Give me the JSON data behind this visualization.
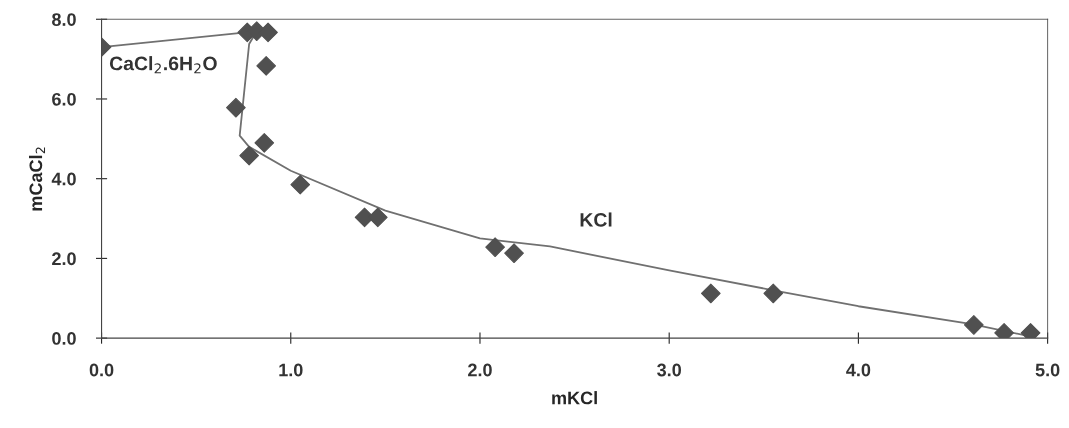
{
  "chart_data": {
    "type": "scatter",
    "xlabel": "mKCl",
    "ylabel": "mCaCl$_{2}$",
    "xlim": [
      0,
      5
    ],
    "ylim": [
      0,
      8
    ],
    "xticks": [
      {
        "value": 0,
        "label": "0.0"
      },
      {
        "value": 1,
        "label": "1.0"
      },
      {
        "value": 2,
        "label": "2.0"
      },
      {
        "value": 3,
        "label": "3.0"
      },
      {
        "value": 4,
        "label": "4.0"
      },
      {
        "value": 5,
        "label": "5.0"
      }
    ],
    "yticks": [
      {
        "value": 0,
        "label": "0.0"
      },
      {
        "value": 2,
        "label": "2.0"
      },
      {
        "value": 4,
        "label": "4.0"
      },
      {
        "value": 6,
        "label": "6.0"
      },
      {
        "value": 8,
        "label": "8.0"
      }
    ],
    "grid": false,
    "legend": false,
    "series": [
      {
        "marker": "diamond",
        "color": "#505050",
        "x": [
          0,
          0.77,
          0.82,
          0.88,
          0.87,
          0.71,
          0.78,
          0.86,
          1.05,
          1.39,
          1.46,
          2.08,
          2.18,
          3.22,
          3.55,
          4.61,
          4.77,
          4.91
        ],
        "values": [
          7.3,
          7.67,
          7.7,
          7.67,
          6.83,
          5.78,
          4.58,
          4.9,
          3.85,
          3.03,
          3.03,
          2.28,
          2.13,
          1.12,
          1.12,
          0.33,
          0.13,
          0.13
        ]
      },
      {
        "type": "line",
        "marker": "none",
        "line_style": "solid",
        "color": "#707070",
        "x": [
          0,
          0.82,
          0.78,
          0.73,
          0.78,
          1.0,
          1.5,
          2.0,
          2.37,
          3.0,
          3.55,
          4.0,
          4.6,
          4.9
        ],
        "values": [
          7.3,
          7.7,
          7.38,
          5.08,
          4.8,
          4.2,
          3.2,
          2.5,
          2.3,
          1.7,
          1.2,
          0.8,
          0.35,
          0.05
        ]
      }
    ],
    "annotations": [
      "CaCl$_{2}$.6H$_{2}$O",
      "KCl"
    ]
  }
}
